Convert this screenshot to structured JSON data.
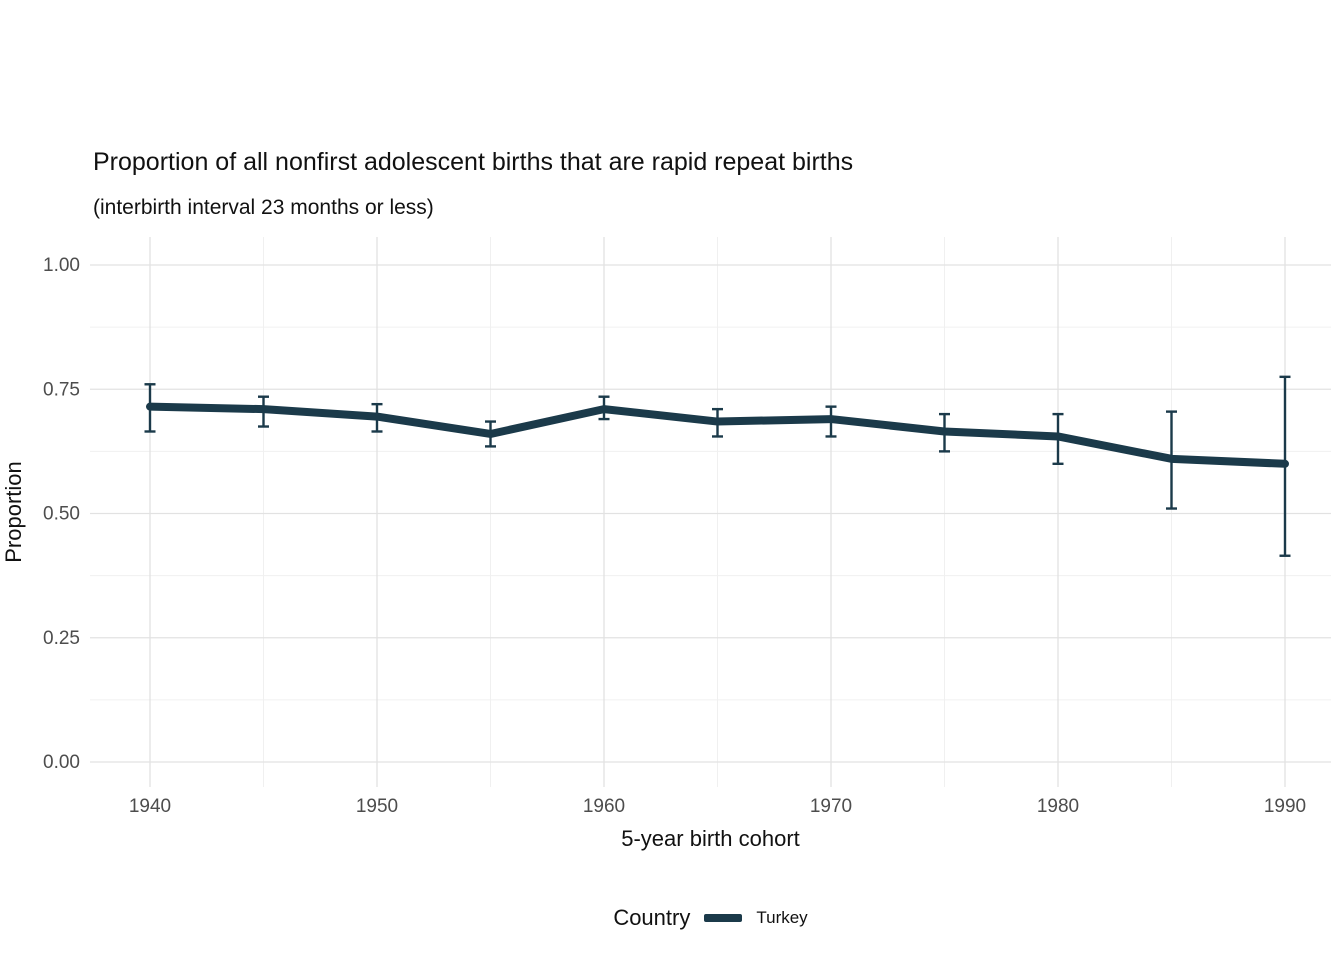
{
  "chart_data": {
    "type": "line",
    "title": "Proportion of all nonfirst adolescent births that are rapid repeat births",
    "subtitle": "(interbirth interval 23 months or less)",
    "xlabel": "5-year birth cohort",
    "ylabel": "Proportion",
    "grid": true,
    "legend": {
      "title": "Country",
      "position": "bottom",
      "entries": [
        "Turkey"
      ]
    },
    "colors": {
      "line": "#1b3a4a",
      "grid_major": "#e2e2e2",
      "grid_minor": "#f0f0f0",
      "tick_text": "#4d4d4d",
      "title_text": "#111111"
    },
    "axes": {
      "x_domain": [
        1940,
        1990
      ],
      "y_domain": [
        0,
        1
      ],
      "x_ticks": [
        {
          "value": 1940,
          "label": "1940"
        },
        {
          "value": 1950,
          "label": "1950"
        },
        {
          "value": 1960,
          "label": "1960"
        },
        {
          "value": 1970,
          "label": "1970"
        },
        {
          "value": 1980,
          "label": "1980"
        },
        {
          "value": 1990,
          "label": "1990"
        }
      ],
      "x_minor": [
        1945,
        1955,
        1965,
        1975,
        1985
      ],
      "y_ticks": [
        {
          "value": 0.0,
          "label": "0.00"
        },
        {
          "value": 0.25,
          "label": "0.25"
        },
        {
          "value": 0.5,
          "label": "0.50"
        },
        {
          "value": 0.75,
          "label": "0.75"
        },
        {
          "value": 1.0,
          "label": "1.00"
        }
      ],
      "y_minor": [
        0.125,
        0.375,
        0.625,
        0.875
      ]
    },
    "series": [
      {
        "name": "Turkey",
        "color": "#1b3a4a",
        "x": [
          1940,
          1945,
          1950,
          1955,
          1960,
          1965,
          1970,
          1975,
          1980,
          1985,
          1990
        ],
        "values": [
          0.715,
          0.71,
          0.695,
          0.66,
          0.71,
          0.685,
          0.69,
          0.665,
          0.655,
          0.61,
          0.6
        ],
        "ci_low": [
          0.665,
          0.675,
          0.665,
          0.635,
          0.69,
          0.655,
          0.655,
          0.625,
          0.6,
          0.51,
          0.415
        ],
        "ci_high": [
          0.76,
          0.735,
          0.72,
          0.685,
          0.735,
          0.71,
          0.715,
          0.7,
          0.7,
          0.705,
          0.775
        ]
      }
    ]
  }
}
